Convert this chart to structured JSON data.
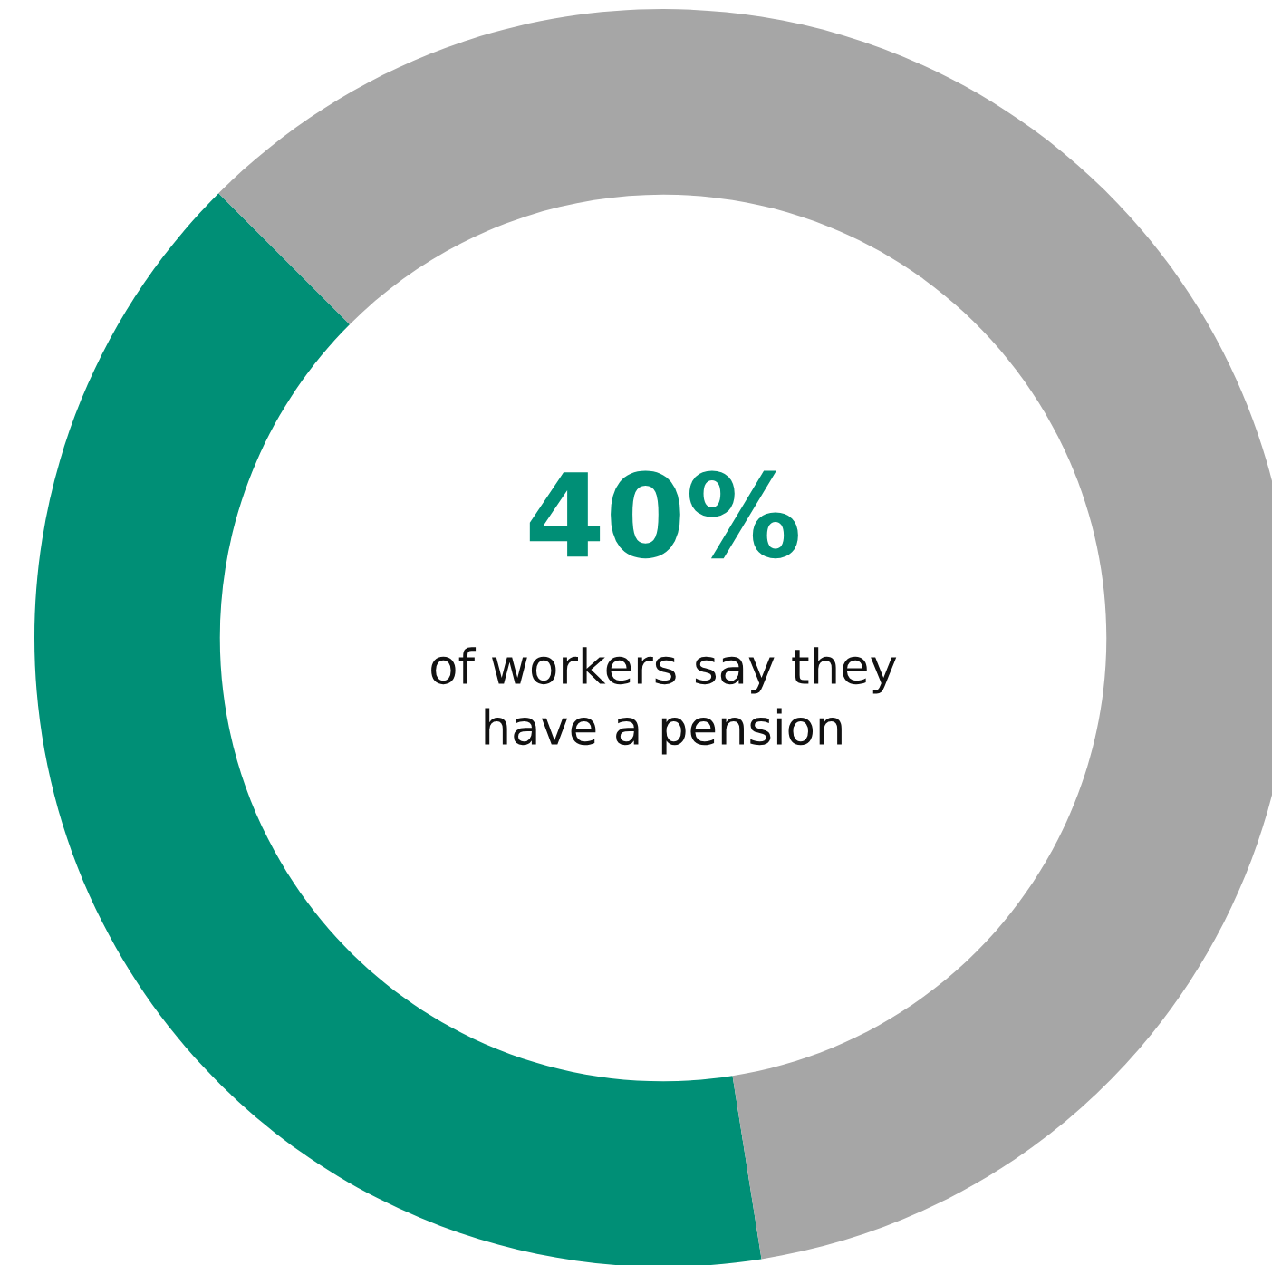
{
  "chart_data": {
    "type": "donut",
    "categories": [
      null,
      null
    ],
    "values": [
      40,
      60
    ],
    "colors": [
      "#008f76",
      "#a6a6a6"
    ],
    "annotations": [
      "40%",
      "of workers say they\nhave a pension"
    ],
    "legend": false
  }
}
